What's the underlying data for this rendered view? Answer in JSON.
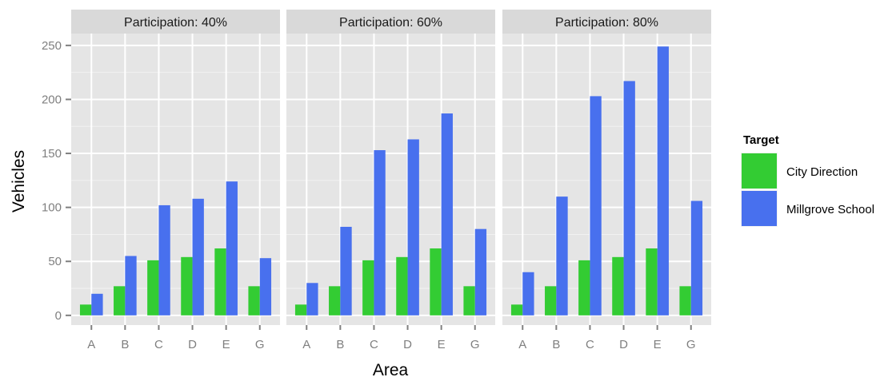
{
  "chart_data": {
    "type": "bar",
    "facet_titles": [
      "Participation: 40%",
      "Participation: 60%",
      "Participation: 80%"
    ],
    "categories": [
      "A",
      "B",
      "C",
      "D",
      "E",
      "G"
    ],
    "xlabel": "Area",
    "ylabel": "Vehicles",
    "ylim": [
      -9,
      261
    ],
    "yticks": [
      0,
      50,
      100,
      150,
      200,
      250
    ],
    "grid": true,
    "legend": {
      "title": "Target",
      "position": "right",
      "entries": [
        "City Direction",
        "Millgrove School"
      ]
    },
    "series": [
      {
        "name": "City Direction",
        "color": "#33cc33",
        "facets": [
          [
            10,
            27,
            51,
            54,
            62,
            27
          ],
          [
            10,
            27,
            51,
            54,
            62,
            27
          ],
          [
            10,
            27,
            51,
            54,
            62,
            27
          ]
        ]
      },
      {
        "name": "Millgrove School",
        "color": "#4870ee",
        "facets": [
          [
            20,
            55,
            102,
            108,
            124,
            53
          ],
          [
            30,
            82,
            153,
            163,
            187,
            80
          ],
          [
            40,
            110,
            203,
            217,
            249,
            106
          ]
        ]
      }
    ]
  }
}
